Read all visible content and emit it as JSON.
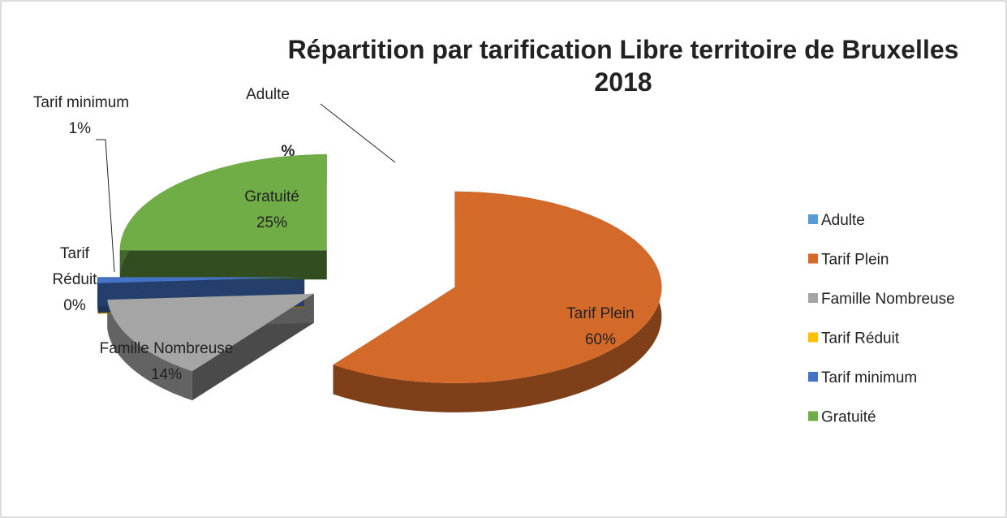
{
  "chart_data": {
    "type": "pie3d",
    "title": "Répartition par tarification Libre territoire de Bruxelles 2018",
    "series_name": "%",
    "categories": [
      "Adulte",
      "Tarif Plein",
      "Famille Nombreuse",
      "Tarif Réduit",
      "Tarif minimum",
      "Gratuité"
    ],
    "values": [
      0,
      60,
      14,
      0,
      1,
      25
    ],
    "value_labels": [
      null,
      "60%",
      "14%",
      "0%",
      "1%",
      "25%"
    ],
    "colors": [
      "#5b9bd5",
      "#d46a2a",
      "#a5a5a5",
      "#ffc000",
      "#4472c4",
      "#70ad47"
    ],
    "legend": "right"
  }
}
